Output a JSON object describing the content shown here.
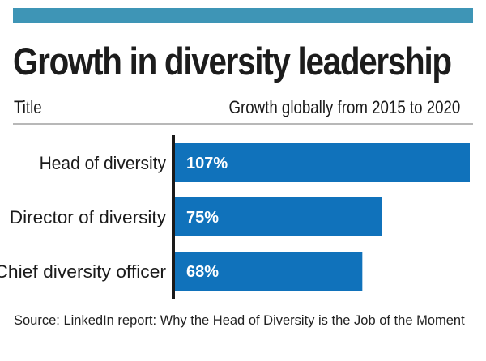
{
  "header": {
    "title": "Growth in diversity leadership",
    "column_left": "Title",
    "column_right": "Growth globally from 2015 to 2020"
  },
  "colors": {
    "top_bar": "#3e95b6",
    "bar": "#1072bb",
    "axis": "#1a1a1a",
    "bar_label": "#ffffff"
  },
  "chart_data": {
    "type": "bar",
    "orientation": "horizontal",
    "title": "Growth in diversity leadership",
    "xlabel": "Growth globally from 2015 to 2020",
    "ylabel": "Title",
    "categories": [
      "Head of diversity",
      "Director of diversity",
      "Chief diversity officer"
    ],
    "values": [
      107,
      75,
      68
    ],
    "value_labels": [
      "107%",
      "75%",
      "68%"
    ],
    "unit": "%",
    "xlim": [
      0,
      107
    ],
    "grid": false,
    "legend": "none"
  },
  "footer": {
    "source": "Source: LinkedIn report: Why the Head of Diversity is the Job of the Moment"
  }
}
